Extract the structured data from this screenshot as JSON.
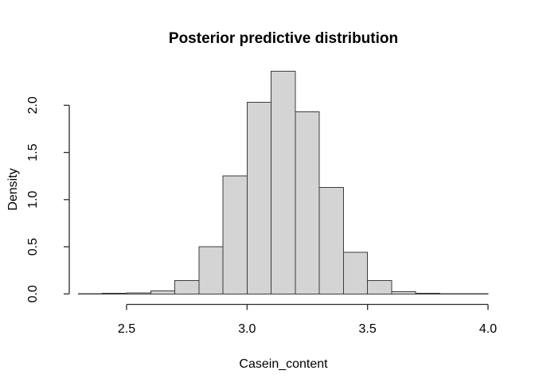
{
  "title": "Posterior predictive distribution",
  "x_axis": {
    "label": "Casein_content",
    "tick_labels": [
      "2.5",
      "3.0",
      "3.5",
      "4.0"
    ]
  },
  "y_axis": {
    "label": "Density",
    "tick_labels": [
      "0.0",
      "0.5",
      "1.0",
      "1.5",
      "2.0"
    ]
  },
  "colors": {
    "background": "#ffffff",
    "bar_fill": "#d4d4d4",
    "bar_border": "#3c3c3c",
    "axis_line": "#2b2b2b",
    "text": "#000000"
  },
  "chart_data": {
    "type": "bar",
    "subtype": "histogram",
    "title": "Posterior predictive distribution",
    "xlabel": "Casein_content",
    "ylabel": "Density",
    "bin_width": 0.1,
    "breaks": [
      2.3,
      2.4,
      2.5,
      2.6,
      2.7,
      2.8,
      2.9,
      3.0,
      3.1,
      3.2,
      3.3,
      3.4,
      3.5,
      3.6,
      3.7,
      3.8,
      3.9,
      4.0
    ],
    "densities": [
      0.002,
      0.005,
      0.011,
      0.034,
      0.14,
      0.5,
      1.25,
      2.03,
      2.36,
      1.93,
      1.13,
      0.44,
      0.14,
      0.022,
      0.005,
      0.002,
      0.002
    ],
    "x_ticks": [
      2.5,
      3.0,
      3.5,
      4.0
    ],
    "y_ticks": [
      0.0,
      0.5,
      1.0,
      1.5,
      2.0
    ],
    "xlim": [
      2.3,
      4.0
    ],
    "ylim": [
      0.0,
      2.37
    ],
    "grid": false,
    "legend": false
  }
}
